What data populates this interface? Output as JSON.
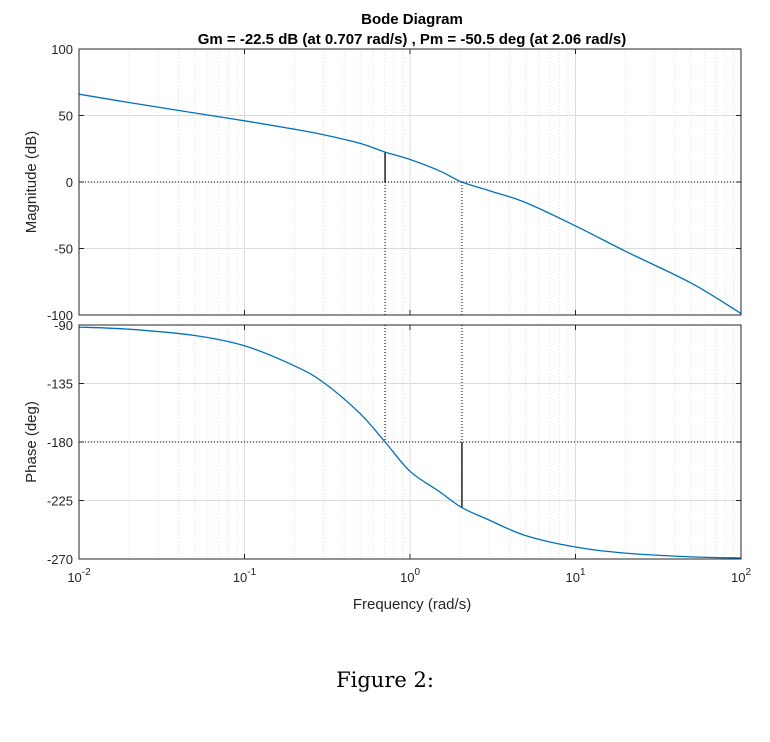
{
  "chart_data": {
    "type": "line",
    "title": "Bode Diagram",
    "subtitle": "Gm = -22.5 dB (at 0.707 rad/s) ,  Pm = -50.5 deg (at 2.06 rad/s)",
    "xlabel": "Frequency  (rad/s)",
    "xscale": "log",
    "xlim": [
      0.01,
      100
    ],
    "x_tick_labels": [
      {
        "base": "10",
        "exp": "-2"
      },
      {
        "base": "10",
        "exp": "-1"
      },
      {
        "base": "10",
        "exp": "0"
      },
      {
        "base": "10",
        "exp": "1"
      },
      {
        "base": "10",
        "exp": "2"
      }
    ],
    "grid": true,
    "line_color": "#0072BD",
    "margins": {
      "gain_margin_db": -22.5,
      "gain_crossover_freq": 0.707,
      "phase_margin_deg": -50.5,
      "phase_crossover_freq": 2.06
    },
    "magnitude": {
      "ylabel": "Magnitude (dB)",
      "ylim": [
        -100,
        100
      ],
      "yticks": [
        "100",
        "50",
        "0",
        "-50",
        "-100"
      ],
      "x": [
        0.01,
        0.02,
        0.05,
        0.1,
        0.2,
        0.3,
        0.5,
        0.707,
        1,
        1.5,
        2.06,
        3,
        5,
        10,
        20,
        50,
        100
      ],
      "values": [
        66.0,
        59.8,
        51.9,
        46.0,
        39.7,
        35.6,
        29.0,
        22.5,
        16.9,
        8.5,
        0.0,
        -6.5,
        -15.5,
        -33.0,
        -52.0,
        -76.0,
        -98.9
      ]
    },
    "phase": {
      "ylabel": "Phase (deg)",
      "ylim": [
        -270,
        -90
      ],
      "yticks": [
        "-90",
        "-135",
        "-180",
        "-225",
        "-270"
      ],
      "x": [
        0.01,
        0.02,
        0.05,
        0.1,
        0.2,
        0.3,
        0.5,
        0.707,
        1,
        1.5,
        2.06,
        3,
        5,
        10,
        20,
        50,
        100
      ],
      "values": [
        -91.6,
        -93.2,
        -98.1,
        -106.0,
        -121.4,
        -134.2,
        -158.2,
        -180.0,
        -202.5,
        -218.0,
        -230.5,
        -240.0,
        -252.0,
        -260.8,
        -265.5,
        -268.4,
        -269.2
      ]
    }
  },
  "figure_caption": "Figure 2:"
}
